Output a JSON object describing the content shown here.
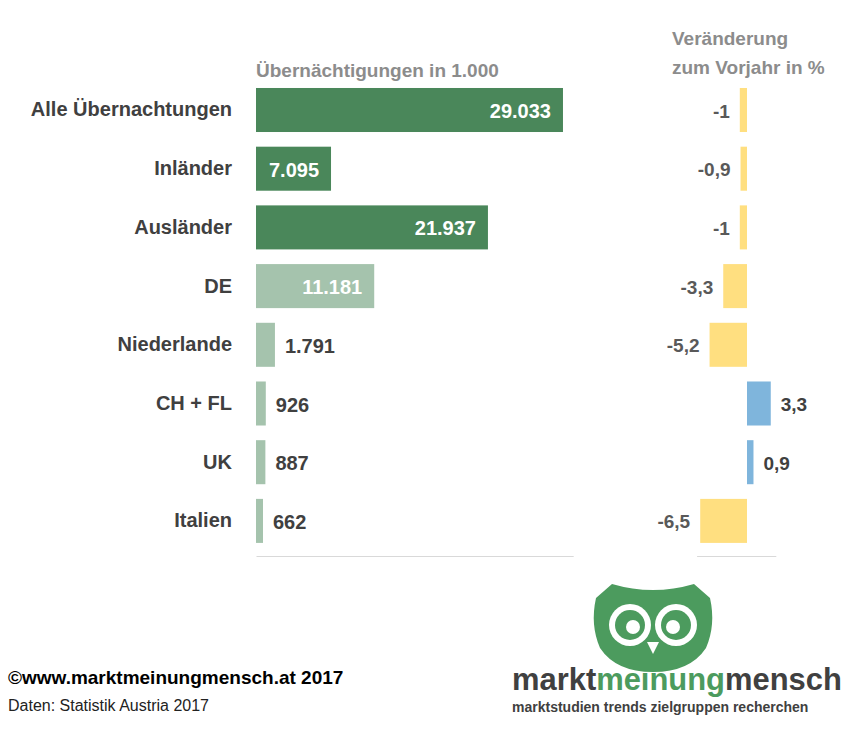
{
  "chart_data": [
    {
      "type": "bar",
      "orientation": "horizontal",
      "title": "Übernächtigungen  in 1.000",
      "categories": [
        "Alle Übernachtungen",
        "Inländer",
        "Ausländer",
        "DE",
        "Niederlande",
        "CH + FL",
        "UK",
        "Italien"
      ],
      "values": [
        29033,
        7095,
        21937,
        11181,
        1791,
        926,
        887,
        662
      ],
      "value_labels": [
        "29.033",
        "7.095",
        "21.937",
        "11.181",
        "1.791",
        "926",
        "887",
        "662"
      ],
      "colors": [
        "#4a875a",
        "#4a875a",
        "#4a875a",
        "#a5c3ad",
        "#a5c3ad",
        "#a5c3ad",
        "#a5c3ad",
        "#a5c3ad"
      ],
      "xlim": [
        0,
        30000
      ],
      "xticks": [],
      "tick_labels": false,
      "data_labels": true
    },
    {
      "type": "bar",
      "orientation": "horizontal",
      "title": "Veränderung\nzum Vorjahr in %",
      "categories": [
        null,
        null,
        null,
        null,
        null,
        null,
        null,
        null
      ],
      "values": [
        -1,
        -0.9,
        -1,
        -3.3,
        -5.2,
        3.3,
        0.9,
        -6.5
      ],
      "value_labels": [
        "-1",
        "-0,9",
        "-1",
        "-3,3",
        "-5,2",
        "3,3",
        "0,9",
        "-6,5"
      ],
      "colors": [
        "#ffdf80",
        "#ffdf80",
        "#ffdf80",
        "#ffdf80",
        "#ffdf80",
        "#7fb5dc",
        "#7fb5dc",
        "#ffdf80"
      ],
      "xlim": [
        -7,
        4
      ],
      "xticks": [],
      "tick_labels": false,
      "data_labels": true
    }
  ],
  "credits": {
    "copyright": "©www.marktmeinungmensch.at 2017",
    "source": "Daten: Statistik Austria 2017"
  },
  "logo": {
    "words": [
      "markt",
      "meinung",
      "mensch"
    ],
    "tagline": "marktstudien trends zielgruppen recherchen"
  }
}
